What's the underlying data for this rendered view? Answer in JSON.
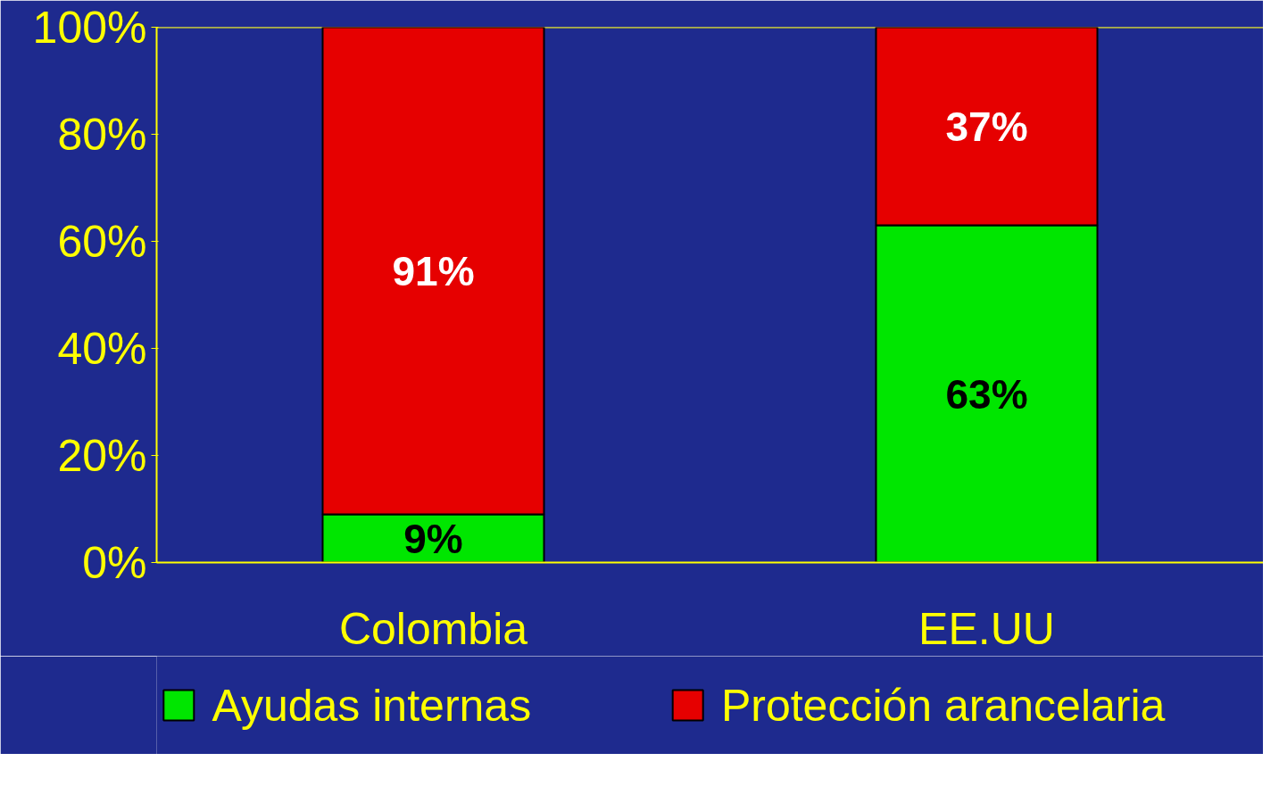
{
  "chart_data": {
    "type": "bar",
    "stacked": true,
    "categories": [
      "Colombia",
      "EE.UU"
    ],
    "series": [
      {
        "name": "Ayudas internas",
        "color": "#00e600",
        "values": [
          9,
          63
        ],
        "value_labels": [
          "9%",
          "63%"
        ]
      },
      {
        "name": "Protección arancelaria",
        "color": "#e60000",
        "values": [
          91,
          37
        ],
        "value_labels": [
          "91%",
          "37%"
        ]
      }
    ],
    "ylim": [
      0,
      100
    ],
    "yticks": [
      {
        "value": 0,
        "label": "0%"
      },
      {
        "value": 20,
        "label": "20%"
      },
      {
        "value": 40,
        "label": "40%"
      },
      {
        "value": 60,
        "label": "60%"
      },
      {
        "value": 80,
        "label": "80%"
      },
      {
        "value": 100,
        "label": "100%"
      }
    ],
    "grid": false,
    "legend": "bottom"
  }
}
